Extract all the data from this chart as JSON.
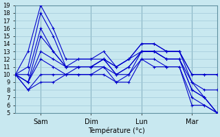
{
  "title": "",
  "xlabel": "Température (°c)",
  "ylabel": "",
  "bg_color": "#c8e8f0",
  "grid_color": "#a0c8d8",
  "line_color": "#0000cc",
  "x_ticks": [
    24,
    72,
    120,
    168
  ],
  "x_tick_labels": [
    "Sam",
    "Dim",
    "Lun",
    "Mar"
  ],
  "ylim": [
    5,
    19
  ],
  "xlim": [
    0,
    192
  ],
  "y_ticks": [
    5,
    6,
    7,
    8,
    9,
    10,
    11,
    12,
    13,
    14,
    15,
    16,
    17,
    18,
    19
  ],
  "series": [
    [
      10,
      13,
      19,
      16,
      12,
      12,
      12,
      13,
      11,
      12,
      14,
      14,
      13,
      13,
      10,
      10,
      10
    ],
    [
      10,
      11,
      18,
      15,
      11,
      12,
      12,
      12,
      11,
      12,
      14,
      14,
      13,
      13,
      10,
      10,
      10
    ],
    [
      10,
      10,
      16,
      13,
      11,
      11,
      11,
      12,
      11,
      12,
      13,
      13,
      13,
      13,
      9,
      8,
      8
    ],
    [
      10,
      9,
      15,
      13,
      11,
      11,
      11,
      12,
      10,
      11,
      13,
      13,
      12,
      12,
      9,
      7,
      5
    ],
    [
      10,
      9,
      13,
      12,
      11,
      11,
      11,
      12,
      10,
      11,
      13,
      13,
      12,
      12,
      8,
      7,
      5
    ],
    [
      10,
      9,
      12,
      11,
      10,
      11,
      11,
      11,
      10,
      10,
      13,
      13,
      12,
      12,
      8,
      7,
      5
    ],
    [
      10,
      8,
      10,
      10,
      10,
      10,
      10,
      11,
      9,
      10,
      12,
      12,
      11,
      11,
      7,
      6,
      5
    ],
    [
      10,
      8,
      9,
      9,
      10,
      10,
      10,
      10,
      9,
      9,
      12,
      11,
      11,
      11,
      6,
      6,
      5
    ]
  ],
  "x_positions": [
    0,
    12,
    24,
    36,
    48,
    60,
    72,
    84,
    96,
    108,
    120,
    132,
    144,
    156,
    168,
    180,
    192
  ]
}
